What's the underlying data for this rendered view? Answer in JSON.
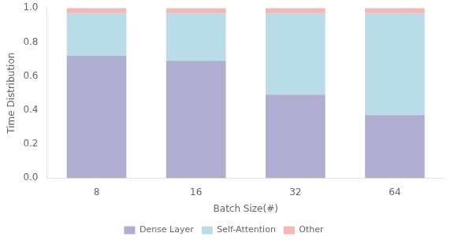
{
  "chart_data": {
    "type": "bar",
    "stacked": true,
    "categories": [
      "8",
      "16",
      "32",
      "64"
    ],
    "xlabel": "Batch Size(#)",
    "ylabel": "Time Distribution",
    "ylim": [
      0.0,
      1.0
    ],
    "yticks": [
      {
        "value": 0,
        "label": "0.0"
      },
      0.2,
      0.4,
      0.6,
      0.8,
      {
        "value": 1,
        "label": "1.0"
      }
    ],
    "series": [
      {
        "name": "Dense Layer",
        "color": "#b0aed0",
        "values": [
          0.72,
          0.69,
          0.49,
          0.37
        ]
      },
      {
        "name": "Self-Attention",
        "color": "#b8dce8",
        "values": [
          0.25,
          0.28,
          0.48,
          0.6
        ]
      },
      {
        "name": "Other",
        "color": "#f4b8b0",
        "values": [
          0.03,
          0.03,
          0.03,
          0.03
        ]
      }
    ],
    "grid": false,
    "legend": "bottom"
  }
}
